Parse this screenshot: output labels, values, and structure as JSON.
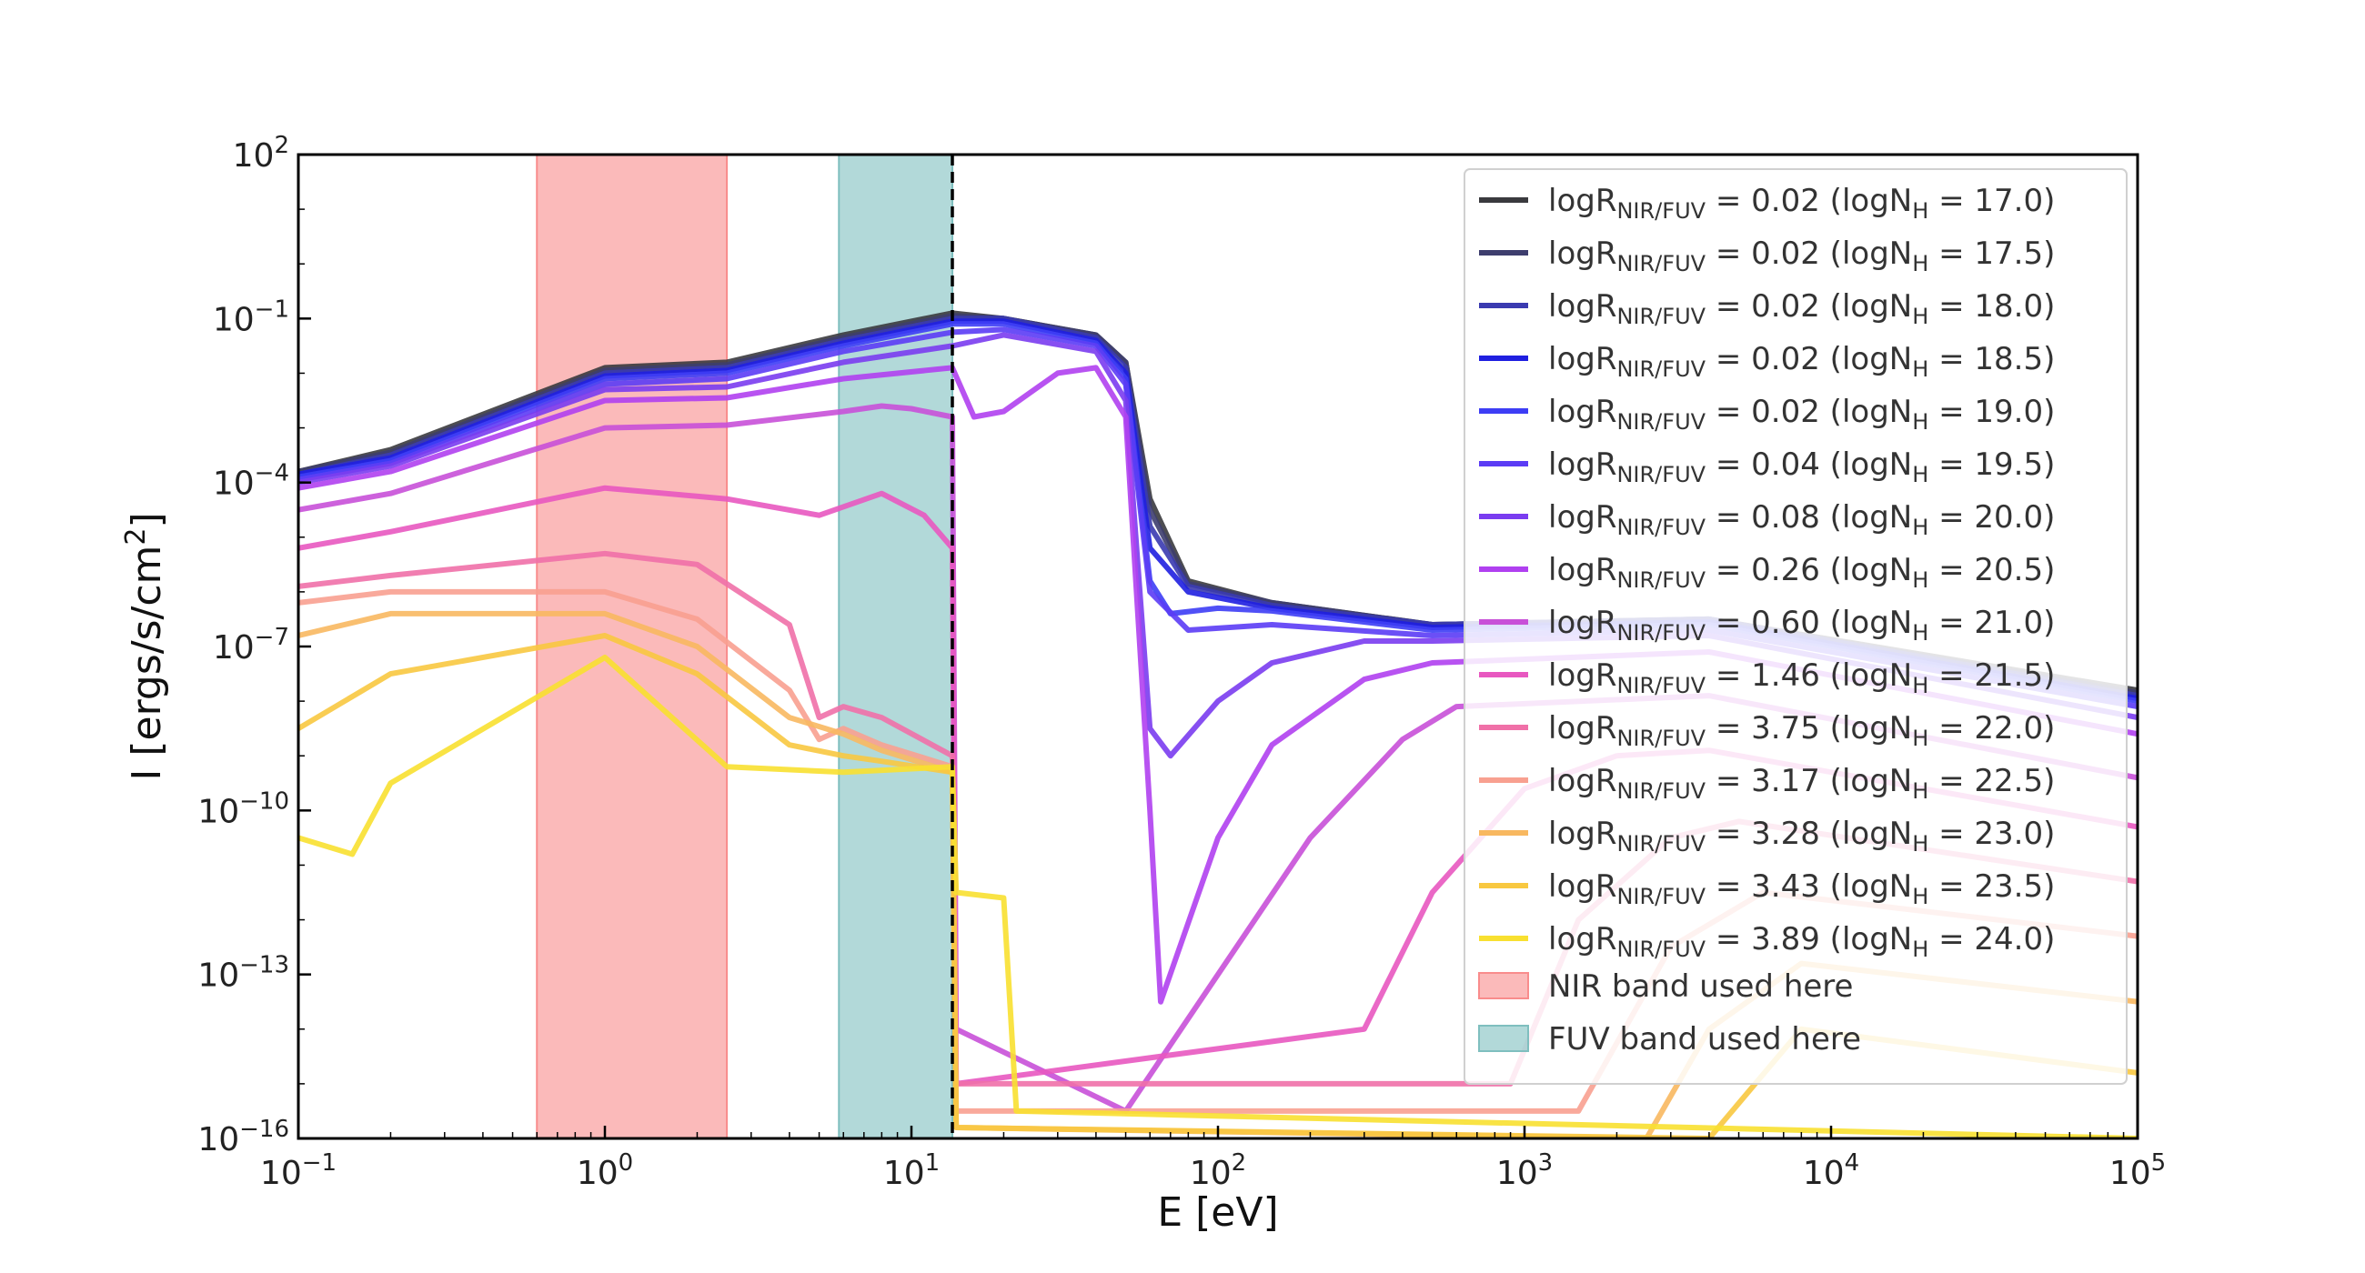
{
  "chart_data": {
    "type": "line",
    "xscale": "log",
    "yscale": "log",
    "xlim": [
      0.1,
      100000
    ],
    "ylim": [
      1e-16,
      100
    ],
    "xlabel": "E [eV]",
    "ylabel": "I [ergs/s/cm²]",
    "x_ticks": [
      {
        "value": 0.1,
        "base": "10",
        "exp": "−1"
      },
      {
        "value": 1,
        "base": "10",
        "exp": "0"
      },
      {
        "value": 10,
        "base": "10",
        "exp": "1"
      },
      {
        "value": 100,
        "base": "10",
        "exp": "2"
      },
      {
        "value": 1000,
        "base": "10",
        "exp": "3"
      },
      {
        "value": 10000,
        "base": "10",
        "exp": "4"
      },
      {
        "value": 100000,
        "base": "10",
        "exp": "5"
      }
    ],
    "y_ticks": [
      {
        "value": 1e-16,
        "base": "10",
        "exp": "−16"
      },
      {
        "value": 1e-13,
        "base": "10",
        "exp": "−13"
      },
      {
        "value": 1e-10,
        "base": "10",
        "exp": "−10"
      },
      {
        "value": 1e-07,
        "base": "10",
        "exp": "−7"
      },
      {
        "value": 0.0001,
        "base": "10",
        "exp": "−4"
      },
      {
        "value": 0.1,
        "base": "10",
        "exp": "−1"
      },
      {
        "value": 100,
        "base": "10",
        "exp": "2"
      }
    ],
    "bands": [
      {
        "name": "NIR band used here",
        "x": [
          0.6,
          2.5
        ],
        "color": "#f98c8c"
      },
      {
        "name": "FUV band used here",
        "x": [
          5.8,
          13.6
        ],
        "color": "#7fbfbf"
      }
    ],
    "vline": {
      "x": 13.6,
      "style": "dashed",
      "color": "#000000"
    },
    "legend_position": "upper-right",
    "series": [
      {
        "ratio": "0.02",
        "logNH": "17.0",
        "color": "#3a3a3e",
        "points": [
          [
            0.1,
            -3.8
          ],
          [
            0.2,
            -3.4
          ],
          [
            1,
            -1.9
          ],
          [
            2.5,
            -1.8
          ],
          [
            6,
            -1.3
          ],
          [
            13.6,
            -0.9
          ],
          [
            20,
            -1.0
          ],
          [
            40,
            -1.3
          ],
          [
            50,
            -1.8
          ],
          [
            60,
            -4.3
          ],
          [
            80,
            -5.8
          ],
          [
            150,
            -6.2
          ],
          [
            500,
            -6.6
          ],
          [
            4000,
            -6.5
          ],
          [
            100000,
            -7.8
          ]
        ]
      },
      {
        "ratio": "0.02",
        "logNH": "17.5",
        "color": "#3e3e6e",
        "points": [
          [
            0.1,
            -3.8
          ],
          [
            0.2,
            -3.45
          ],
          [
            1,
            -1.95
          ],
          [
            2.5,
            -1.85
          ],
          [
            6,
            -1.35
          ],
          [
            13.6,
            -0.95
          ],
          [
            20,
            -1.0
          ],
          [
            40,
            -1.3
          ],
          [
            50,
            -1.8
          ],
          [
            60,
            -4.5
          ],
          [
            80,
            -5.85
          ],
          [
            150,
            -6.2
          ],
          [
            500,
            -6.6
          ],
          [
            4000,
            -6.5
          ],
          [
            100000,
            -7.85
          ]
        ]
      },
      {
        "ratio": "0.02",
        "logNH": "18.0",
        "color": "#3a3ab0",
        "points": [
          [
            0.1,
            -3.85
          ],
          [
            0.2,
            -3.5
          ],
          [
            1,
            -2.0
          ],
          [
            2.5,
            -1.9
          ],
          [
            6,
            -1.4
          ],
          [
            13.6,
            -1.0
          ],
          [
            20,
            -1.0
          ],
          [
            40,
            -1.35
          ],
          [
            50,
            -1.9
          ],
          [
            60,
            -4.8
          ],
          [
            80,
            -5.9
          ],
          [
            150,
            -6.25
          ],
          [
            500,
            -6.6
          ],
          [
            4000,
            -6.5
          ],
          [
            100000,
            -7.9
          ]
        ]
      },
      {
        "ratio": "0.02",
        "logNH": "18.5",
        "color": "#1f1fe0",
        "points": [
          [
            0.1,
            -3.85
          ],
          [
            0.2,
            -3.55
          ],
          [
            1,
            -2.05
          ],
          [
            2.5,
            -1.95
          ],
          [
            6,
            -1.45
          ],
          [
            13.6,
            -1.05
          ],
          [
            20,
            -1.05
          ],
          [
            40,
            -1.4
          ],
          [
            50,
            -2.0
          ],
          [
            60,
            -5.2
          ],
          [
            80,
            -6.0
          ],
          [
            150,
            -6.3
          ],
          [
            500,
            -6.65
          ],
          [
            4000,
            -6.55
          ],
          [
            100000,
            -7.95
          ]
        ]
      },
      {
        "ratio": "0.02",
        "logNH": "19.0",
        "color": "#3d3df5",
        "points": [
          [
            0.1,
            -3.9
          ],
          [
            0.2,
            -3.6
          ],
          [
            1,
            -2.1
          ],
          [
            2.5,
            -2.0
          ],
          [
            6,
            -1.5
          ],
          [
            13.6,
            -1.1
          ],
          [
            20,
            -1.1
          ],
          [
            40,
            -1.45
          ],
          [
            50,
            -2.1
          ],
          [
            60,
            -5.8
          ],
          [
            70,
            -6.4
          ],
          [
            100,
            -6.3
          ],
          [
            150,
            -6.35
          ],
          [
            500,
            -6.7
          ],
          [
            4000,
            -6.6
          ],
          [
            100000,
            -8.0
          ]
        ]
      },
      {
        "ratio": "0.04",
        "logNH": "19.5",
        "color": "#5b3cf5",
        "points": [
          [
            0.1,
            -3.95
          ],
          [
            0.2,
            -3.65
          ],
          [
            1,
            -2.2
          ],
          [
            2.5,
            -2.1
          ],
          [
            6,
            -1.6
          ],
          [
            13.6,
            -1.25
          ],
          [
            20,
            -1.2
          ],
          [
            40,
            -1.5
          ],
          [
            50,
            -2.2
          ],
          [
            60,
            -6.0
          ],
          [
            80,
            -6.7
          ],
          [
            150,
            -6.6
          ],
          [
            500,
            -6.8
          ],
          [
            4000,
            -6.7
          ],
          [
            100000,
            -8.1
          ]
        ]
      },
      {
        "ratio": "0.08",
        "logNH": "20.0",
        "color": "#7a3cf0",
        "points": [
          [
            0.1,
            -4.0
          ],
          [
            0.2,
            -3.7
          ],
          [
            1,
            -2.3
          ],
          [
            2.5,
            -2.25
          ],
          [
            6,
            -1.8
          ],
          [
            13.6,
            -1.5
          ],
          [
            20,
            -1.3
          ],
          [
            40,
            -1.6
          ],
          [
            50,
            -2.5
          ],
          [
            60,
            -8.5
          ],
          [
            70,
            -9.0
          ],
          [
            100,
            -8.0
          ],
          [
            150,
            -7.3
          ],
          [
            300,
            -6.9
          ],
          [
            500,
            -6.9
          ],
          [
            4000,
            -6.8
          ],
          [
            100000,
            -8.3
          ]
        ]
      },
      {
        "ratio": "0.26",
        "logNH": "20.5",
        "color": "#b040f0",
        "points": [
          [
            0.1,
            -4.1
          ],
          [
            0.2,
            -3.8
          ],
          [
            1,
            -2.5
          ],
          [
            2.5,
            -2.45
          ],
          [
            6,
            -2.1
          ],
          [
            13.6,
            -1.9
          ],
          [
            16,
            -2.8
          ],
          [
            20,
            -2.7
          ],
          [
            30,
            -2.0
          ],
          [
            40,
            -1.9
          ],
          [
            50,
            -2.8
          ],
          [
            60,
            -10
          ],
          [
            65,
            -13.5
          ],
          [
            100,
            -10.5
          ],
          [
            150,
            -8.8
          ],
          [
            300,
            -7.6
          ],
          [
            500,
            -7.3
          ],
          [
            4000,
            -7.1
          ],
          [
            100000,
            -8.6
          ]
        ]
      },
      {
        "ratio": "0.60",
        "logNH": "21.0",
        "color": "#c850d8",
        "points": [
          [
            0.1,
            -4.5
          ],
          [
            0.2,
            -4.2
          ],
          [
            1,
            -3.0
          ],
          [
            2.5,
            -2.95
          ],
          [
            6,
            -2.7
          ],
          [
            8,
            -2.6
          ],
          [
            10,
            -2.65
          ],
          [
            13.6,
            -2.8
          ],
          [
            14,
            -14
          ],
          [
            50,
            -15.5
          ],
          [
            100,
            -13
          ],
          [
            200,
            -10.5
          ],
          [
            400,
            -8.7
          ],
          [
            600,
            -8.1
          ],
          [
            4000,
            -7.9
          ],
          [
            100000,
            -9.4
          ]
        ]
      },
      {
        "ratio": "1.46",
        "logNH": "21.5",
        "color": "#e858c0",
        "points": [
          [
            0.1,
            -5.2
          ],
          [
            0.2,
            -4.9
          ],
          [
            1,
            -4.1
          ],
          [
            2.5,
            -4.3
          ],
          [
            5,
            -4.6
          ],
          [
            8,
            -4.2
          ],
          [
            11,
            -4.6
          ],
          [
            13.6,
            -5.2
          ],
          [
            14,
            -15
          ],
          [
            300,
            -14
          ],
          [
            500,
            -11.5
          ],
          [
            1000,
            -9.6
          ],
          [
            2000,
            -9.0
          ],
          [
            4000,
            -8.9
          ],
          [
            100000,
            -10.3
          ]
        ]
      },
      {
        "ratio": "3.75",
        "logNH": "22.0",
        "color": "#f070a8",
        "points": [
          [
            0.1,
            -5.9
          ],
          [
            0.2,
            -5.7
          ],
          [
            1,
            -5.3
          ],
          [
            2,
            -5.5
          ],
          [
            4,
            -6.6
          ],
          [
            5,
            -8.3
          ],
          [
            6,
            -8.1
          ],
          [
            8,
            -8.3
          ],
          [
            13.6,
            -9.0
          ],
          [
            14,
            -15
          ],
          [
            900,
            -15
          ],
          [
            1500,
            -12
          ],
          [
            3000,
            -10.5
          ],
          [
            5000,
            -10.2
          ],
          [
            100000,
            -11.3
          ]
        ]
      },
      {
        "ratio": "3.17",
        "logNH": "22.5",
        "color": "#f8a090",
        "points": [
          [
            0.1,
            -6.2
          ],
          [
            0.2,
            -6.0
          ],
          [
            1,
            -6.0
          ],
          [
            2,
            -6.5
          ],
          [
            4,
            -7.8
          ],
          [
            5,
            -8.7
          ],
          [
            6,
            -8.5
          ],
          [
            8,
            -8.8
          ],
          [
            13.6,
            -9.2
          ],
          [
            14,
            -15.5
          ],
          [
            1500,
            -15.5
          ],
          [
            3000,
            -12.5
          ],
          [
            6000,
            -11.5
          ],
          [
            100000,
            -12.3
          ]
        ]
      },
      {
        "ratio": "3.28",
        "logNH": "23.0",
        "color": "#f8b860",
        "points": [
          [
            0.1,
            -6.8
          ],
          [
            0.2,
            -6.4
          ],
          [
            1,
            -6.4
          ],
          [
            2,
            -7.0
          ],
          [
            4,
            -8.3
          ],
          [
            6,
            -8.6
          ],
          [
            8,
            -8.9
          ],
          [
            13.6,
            -9.3
          ],
          [
            14,
            -15.8
          ],
          [
            2500,
            -16
          ],
          [
            4000,
            -14
          ],
          [
            8000,
            -12.8
          ],
          [
            100000,
            -13.5
          ]
        ]
      },
      {
        "ratio": "3.43",
        "logNH": "23.5",
        "color": "#f8c840",
        "points": [
          [
            0.1,
            -8.5
          ],
          [
            0.2,
            -7.5
          ],
          [
            1,
            -6.8
          ],
          [
            2,
            -7.5
          ],
          [
            4,
            -8.8
          ],
          [
            6,
            -9.0
          ],
          [
            8,
            -9.1
          ],
          [
            13.6,
            -9.3
          ],
          [
            14,
            -15.8
          ],
          [
            4000,
            -16
          ],
          [
            8000,
            -14
          ],
          [
            100000,
            -14.8
          ]
        ]
      },
      {
        "ratio": "3.89",
        "logNH": "24.0",
        "color": "#f8e030",
        "points": [
          [
            0.1,
            -10.5
          ],
          [
            0.15,
            -10.8
          ],
          [
            0.2,
            -9.5
          ],
          [
            1,
            -7.2
          ],
          [
            2.5,
            -9.2
          ],
          [
            6,
            -9.3
          ],
          [
            13.6,
            -9.2
          ],
          [
            14,
            -11.5
          ],
          [
            20,
            -11.6
          ],
          [
            22,
            -15.5
          ],
          [
            100000,
            -16
          ]
        ]
      }
    ],
    "legend": {
      "prefix": "logR",
      "sub": "NIR/FUV",
      "nh_prefix": "logN",
      "nh_sub": "H",
      "band_nir_label": "NIR band used here",
      "band_fuv_label": "FUV band used here"
    }
  }
}
